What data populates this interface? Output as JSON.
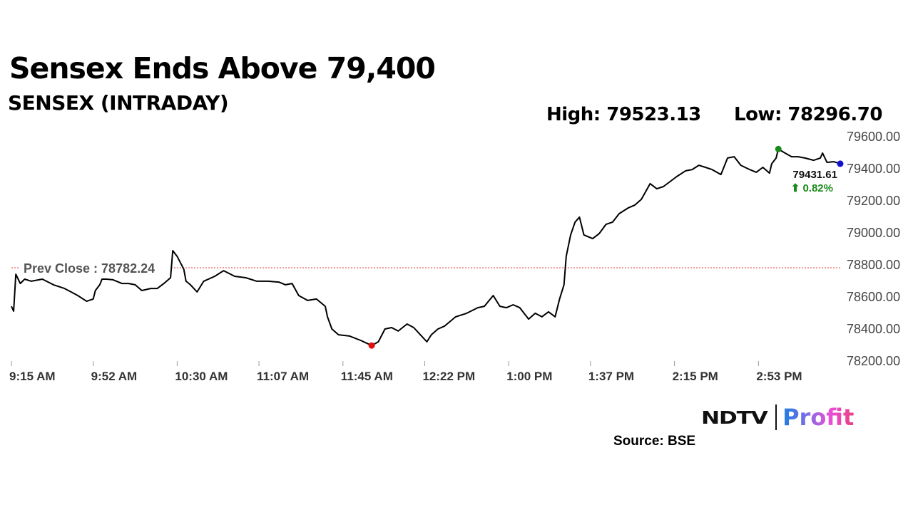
{
  "title": "Sensex Ends Above 79,400",
  "subtitle": "SENSEX (INTRADAY)",
  "high_label": "High: 79523.13",
  "low_label": "Low: 78296.70",
  "source": "Source: BSE",
  "logo": {
    "brand": "NDTV",
    "product": "Profit"
  },
  "colors": {
    "line": "#000000",
    "prev_close": "#e53935",
    "high_marker": "#1a8a1a",
    "low_marker": "#e01010",
    "last_marker": "#1010d0",
    "change_up": "#1a8a1a"
  },
  "chart_data": {
    "type": "line",
    "title": "SENSEX (INTRADAY)",
    "x_unit": "minutes after 9:15 AM",
    "xlim": [
      0,
      375
    ],
    "ylim": [
      78200,
      79600
    ],
    "yticks": [
      78200,
      78400,
      78600,
      78800,
      79000,
      79200,
      79400,
      79600
    ],
    "ytick_labels": [
      "78200.00",
      "78400.00",
      "78600.00",
      "78800.00",
      "79000.00",
      "79200.00",
      "79400.00",
      "79600.00"
    ],
    "xticks": [
      0,
      37,
      75,
      112,
      150,
      187,
      225,
      262,
      300,
      338
    ],
    "xtick_labels": [
      "9:15 AM",
      "9:52 AM",
      "10:30 AM",
      "11:07 AM",
      "11:45 AM",
      "12:22 PM",
      "1:00 PM",
      "1:37 PM",
      "2:15 PM",
      "2:53 PM"
    ],
    "prev_close": {
      "value": 78782.24,
      "label": "Prev Close : 78782.24"
    },
    "high": {
      "x": 347,
      "value": 79523.13
    },
    "low": {
      "x": 163,
      "value": 78296.7
    },
    "last": {
      "x": 375,
      "value": 79431.61,
      "label": "79431.61",
      "change": "⬆ 0.82%"
    },
    "series": [
      {
        "name": "SENSEX",
        "points": [
          [
            0,
            78542
          ],
          [
            1,
            78511
          ],
          [
            2,
            78742
          ],
          [
            4,
            78684
          ],
          [
            6,
            78711
          ],
          [
            9,
            78698
          ],
          [
            14,
            78711
          ],
          [
            19,
            78676
          ],
          [
            24,
            78653
          ],
          [
            27,
            78631
          ],
          [
            30,
            78609
          ],
          [
            34,
            78573
          ],
          [
            37,
            78587
          ],
          [
            38,
            78640
          ],
          [
            40,
            78676
          ],
          [
            41,
            78711
          ],
          [
            43,
            78711
          ],
          [
            46,
            78707
          ],
          [
            50,
            78684
          ],
          [
            53,
            78684
          ],
          [
            56,
            78676
          ],
          [
            59,
            78640
          ],
          [
            63,
            78653
          ],
          [
            66,
            78653
          ],
          [
            69,
            78684
          ],
          [
            72,
            78720
          ],
          [
            73,
            78889
          ],
          [
            75,
            78853
          ],
          [
            78,
            78773
          ],
          [
            79,
            78698
          ],
          [
            81,
            78676
          ],
          [
            84,
            78631
          ],
          [
            87,
            78698
          ],
          [
            92,
            78729
          ],
          [
            96,
            78764
          ],
          [
            101,
            78729
          ],
          [
            106,
            78720
          ],
          [
            111,
            78698
          ],
          [
            116,
            78698
          ],
          [
            121,
            78693
          ],
          [
            124,
            78676
          ],
          [
            127,
            78684
          ],
          [
            130,
            78609
          ],
          [
            134,
            78578
          ],
          [
            138,
            78587
          ],
          [
            142,
            78542
          ],
          [
            143,
            78476
          ],
          [
            145,
            78400
          ],
          [
            148,
            78364
          ],
          [
            153,
            78356
          ],
          [
            158,
            78329
          ],
          [
            163,
            78297
          ],
          [
            166,
            78320
          ],
          [
            169,
            78400
          ],
          [
            172,
            78409
          ],
          [
            175,
            78387
          ],
          [
            179,
            78431
          ],
          [
            182,
            78409
          ],
          [
            185,
            78364
          ],
          [
            188,
            78320
          ],
          [
            190,
            78364
          ],
          [
            193,
            78400
          ],
          [
            196,
            78418
          ],
          [
            201,
            78476
          ],
          [
            206,
            78498
          ],
          [
            211,
            78533
          ],
          [
            214,
            78542
          ],
          [
            218,
            78609
          ],
          [
            221,
            78542
          ],
          [
            224,
            78533
          ],
          [
            227,
            78551
          ],
          [
            230,
            78533
          ],
          [
            234,
            78462
          ],
          [
            237,
            78498
          ],
          [
            240,
            78476
          ],
          [
            243,
            78507
          ],
          [
            246,
            78476
          ],
          [
            248,
            78587
          ],
          [
            250,
            78676
          ],
          [
            251,
            78853
          ],
          [
            253,
            78987
          ],
          [
            255,
            79067
          ],
          [
            257,
            79098
          ],
          [
            259,
            78987
          ],
          [
            263,
            78964
          ],
          [
            266,
            78996
          ],
          [
            269,
            79053
          ],
          [
            272,
            79067
          ],
          [
            275,
            79120
          ],
          [
            279,
            79155
          ],
          [
            282,
            79173
          ],
          [
            285,
            79209
          ],
          [
            289,
            79307
          ],
          [
            292,
            79275
          ],
          [
            295,
            79289
          ],
          [
            298,
            79320
          ],
          [
            301,
            79351
          ],
          [
            305,
            79387
          ],
          [
            308,
            79395
          ],
          [
            311,
            79422
          ],
          [
            314,
            79409
          ],
          [
            317,
            79395
          ],
          [
            321,
            79364
          ],
          [
            324,
            79467
          ],
          [
            327,
            79475
          ],
          [
            330,
            79422
          ],
          [
            334,
            79395
          ],
          [
            337,
            79378
          ],
          [
            340,
            79409
          ],
          [
            343,
            79373
          ],
          [
            344,
            79431
          ],
          [
            346,
            79467
          ],
          [
            347,
            79523
          ],
          [
            350,
            79498
          ],
          [
            353,
            79475
          ],
          [
            356,
            79475
          ],
          [
            359,
            79467
          ],
          [
            363,
            79453
          ],
          [
            366,
            79467
          ],
          [
            367,
            79498
          ],
          [
            369,
            79440
          ],
          [
            372,
            79444
          ],
          [
            375,
            79432
          ]
        ]
      }
    ]
  }
}
